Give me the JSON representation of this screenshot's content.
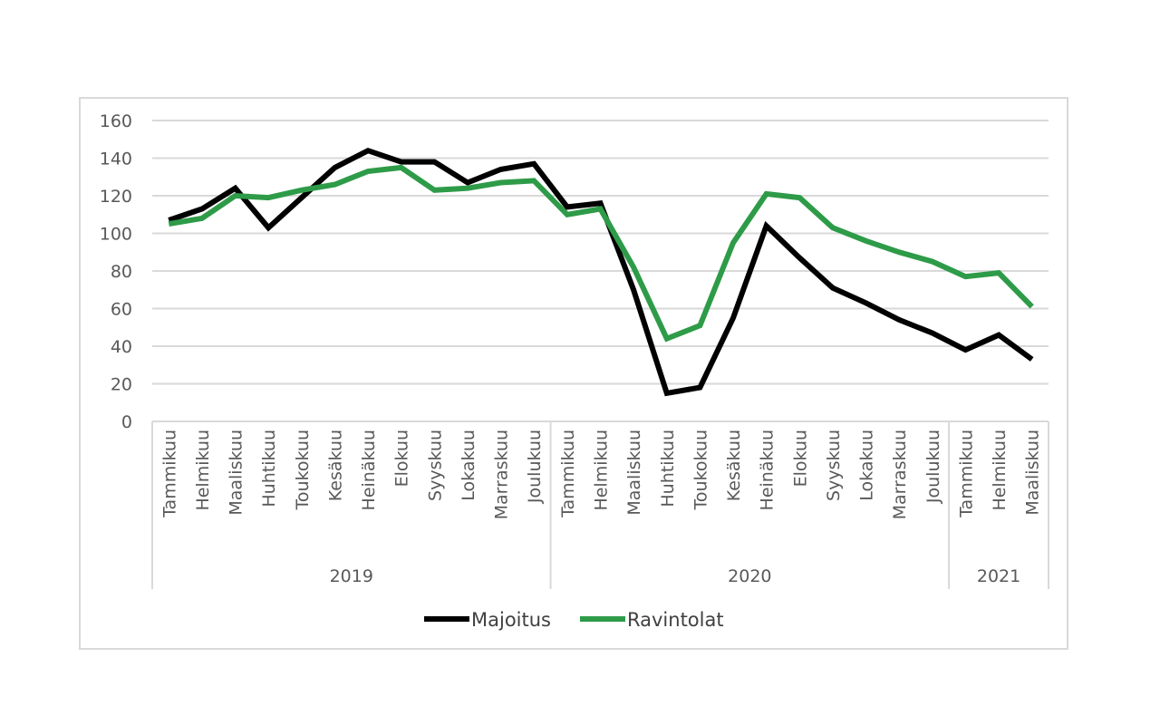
{
  "chart_data": {
    "type": "line",
    "title": "",
    "xlabel": "",
    "ylabel": "",
    "ylim": [
      0,
      160
    ],
    "yticks": [
      "0",
      "20",
      "40",
      "60",
      "80",
      "100",
      "120",
      "140",
      "160"
    ],
    "grid": true,
    "legend_position": "bottom",
    "years": [
      {
        "label": "2019",
        "count": 12
      },
      {
        "label": "2020",
        "count": 12
      },
      {
        "label": "2021",
        "count": 3
      }
    ],
    "categories": [
      "Tammikuu",
      "Helmikuu",
      "Maaliskuu",
      "Huhtikuu",
      "Toukokuu",
      "Kesäkuu",
      "Heinäkuu",
      "Elokuu",
      "Syyskuu",
      "Lokakuu",
      "Marraskuu",
      "Joulukuu",
      "Tammikuu",
      "Helmikuu",
      "Maaliskuu",
      "Huhtikuu",
      "Toukokuu",
      "Kesäkuu",
      "Heinäkuu",
      "Elokuu",
      "Syyskuu",
      "Lokakuu",
      "Marraskuu",
      "Joulukuu",
      "Tammikuu",
      "Helmikuu",
      "Maaliskuu"
    ],
    "series": [
      {
        "name": "Majoitus",
        "color": "#000000",
        "values": [
          107,
          113,
          124,
          103,
          119,
          135,
          144,
          138,
          138,
          127,
          134,
          137,
          114,
          116,
          70,
          15,
          18,
          55,
          104,
          87,
          71,
          63,
          54,
          47,
          38,
          46,
          33
        ]
      },
      {
        "name": "Ravintolat",
        "color": "#2e9b48",
        "values": [
          105,
          108,
          120,
          119,
          123,
          126,
          133,
          135,
          123,
          124,
          127,
          128,
          110,
          113,
          82,
          44,
          51,
          95,
          121,
          119,
          103,
          96,
          90,
          85,
          77,
          79,
          61
        ]
      }
    ]
  }
}
